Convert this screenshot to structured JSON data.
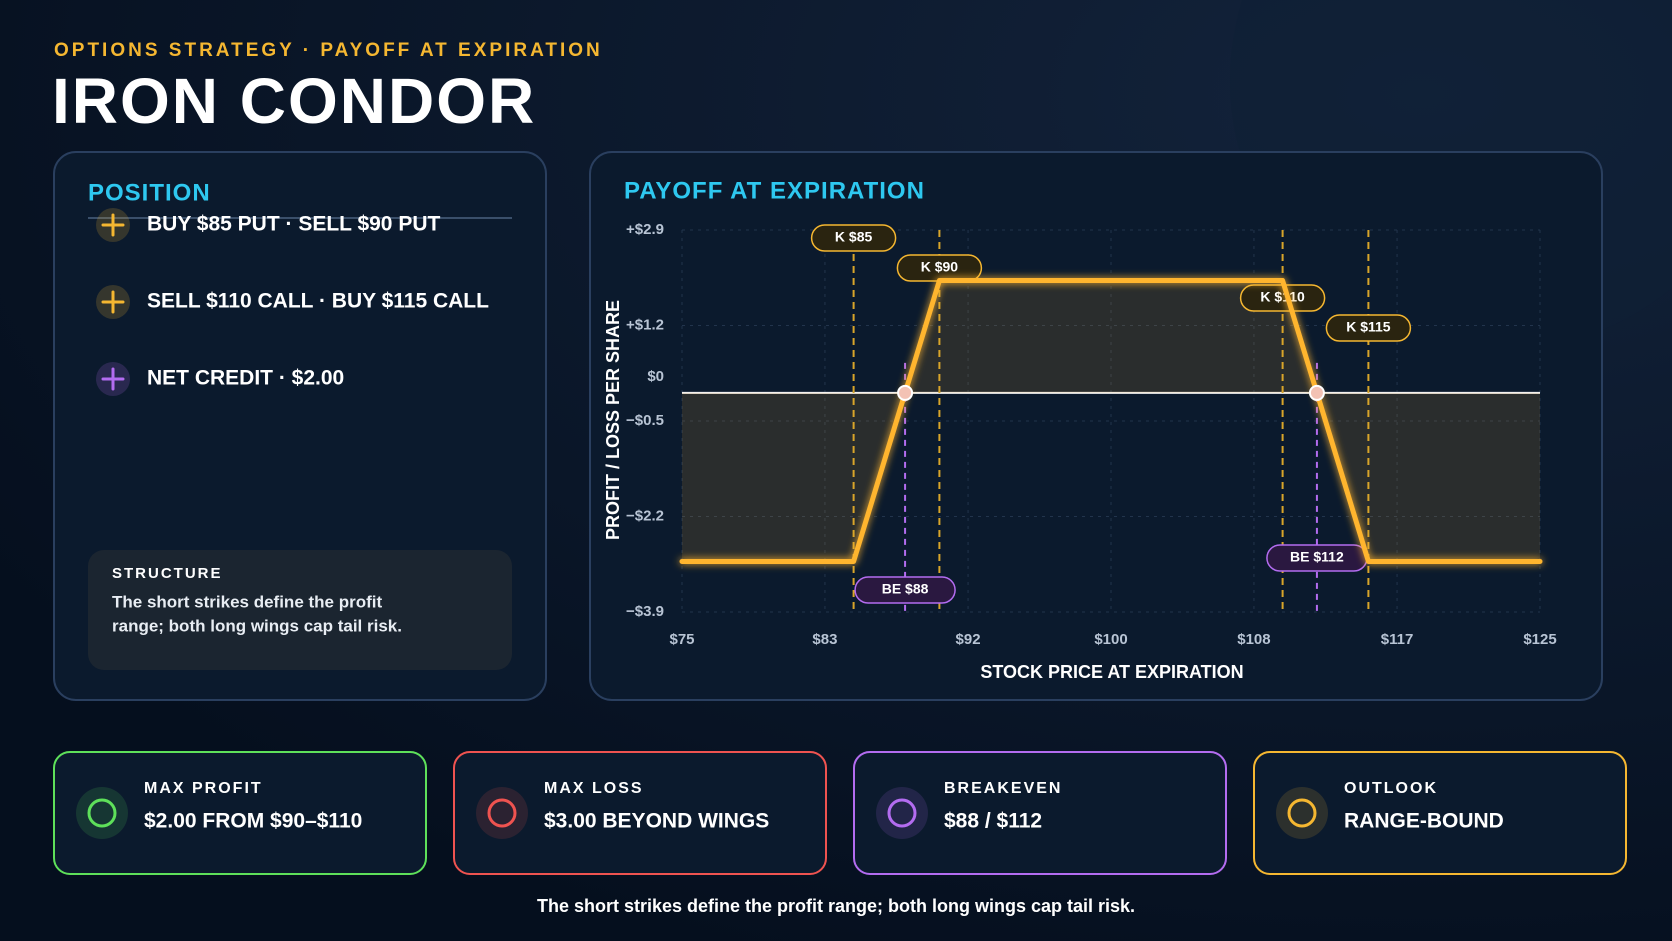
{
  "header": {
    "subtitle": "OPTIONS STRATEGY · PAYOFF AT EXPIRATION",
    "title": "IRON CONDOR"
  },
  "position": {
    "title": "POSITION",
    "items": [
      {
        "label": "BUY $85 PUT · SELL $90 PUT",
        "color": "#f5b731"
      },
      {
        "label": "SELL $110 CALL · BUY $115 CALL",
        "color": "#f5b731"
      },
      {
        "label": "NET CREDIT · $2.00",
        "color": "#b36cf0"
      }
    ],
    "structure": {
      "title": "STRUCTURE",
      "lines": [
        "The short strikes define the profit",
        "range; both long wings cap tail risk."
      ]
    }
  },
  "chart_data": {
    "type": "line",
    "title": "PAYOFF AT EXPIRATION",
    "x_label": "STOCK PRICE AT EXPIRATION",
    "y_label": "PROFIT / LOSS PER SHARE",
    "series": [
      {
        "name": "Payoff",
        "color": "#ffb52e",
        "x": [
          75,
          85,
          90,
          110,
          115,
          125
        ],
        "values": [
          -3,
          -3,
          2,
          2,
          -3,
          -3
        ]
      }
    ],
    "xlim": [
      75,
      125
    ],
    "xticks": [
      {
        "value": 75,
        "label": "$75"
      },
      {
        "value": 83.33,
        "label": "$83"
      },
      {
        "value": 91.67,
        "label": "$92"
      },
      {
        "value": 100,
        "label": "$100"
      },
      {
        "value": 108.33,
        "label": "$108"
      },
      {
        "value": 116.67,
        "label": "$117"
      },
      {
        "value": 125,
        "label": "$125"
      }
    ],
    "ylim": [
      -3.9,
      2.9
    ],
    "yticks": [
      {
        "value": 2.9,
        "label": "+$2.9"
      },
      {
        "value": 1.2,
        "label": "+$1.2"
      },
      {
        "value": 0,
        "label": "$0"
      },
      {
        "value": -0.5,
        "label": "−$0.5"
      },
      {
        "value": -2.2,
        "label": "−$2.2"
      },
      {
        "value": -3.9,
        "label": "−$3.9"
      }
    ],
    "grid": true,
    "strikes": [
      {
        "value": 85,
        "label": "K $85"
      },
      {
        "value": 90,
        "label": "K $90"
      },
      {
        "value": 110,
        "label": "K $110"
      },
      {
        "value": 115,
        "label": "K $115"
      }
    ],
    "breakevens": [
      {
        "value": 88,
        "label": "BE $88"
      },
      {
        "value": 112,
        "label": "BE $112"
      }
    ]
  },
  "cards": [
    {
      "label": "MAX PROFIT",
      "value": "$2.00 FROM $90–$110",
      "color": "#5ee05a"
    },
    {
      "label": "MAX LOSS",
      "value": "$3.00 BEYOND WINGS",
      "color": "#ef5350"
    },
    {
      "label": "BREAKEVEN",
      "value": "$88 / $112",
      "color": "#b36cf0"
    },
    {
      "label": "OUTLOOK",
      "value": "RANGE-BOUND",
      "color": "#f5b731"
    }
  ],
  "footer": "The short strikes define the profit range; both long wings cap tail risk."
}
